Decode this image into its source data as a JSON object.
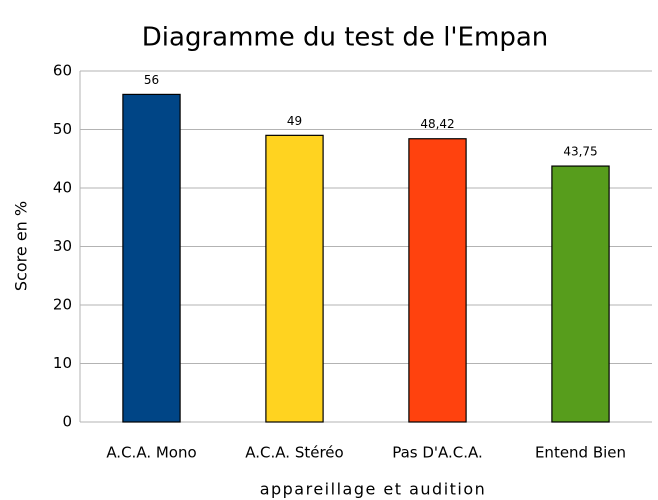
{
  "chart_data": {
    "type": "bar",
    "title": "Diagramme du test de l'Empan",
    "x_label": "appareillage et audition",
    "y_label": "Score en %",
    "categories": [
      "A.C.A. Mono",
      "A.C.A. Stéréo",
      "Pas D'A.C.A.",
      "Entend Bien"
    ],
    "values": [
      56,
      49,
      48.42,
      43.75
    ],
    "value_labels": [
      "56",
      "49",
      "48,42",
      "43,75"
    ],
    "colors": [
      "#004586",
      "#ffd320",
      "#ff420e",
      "#579d1c"
    ],
    "ylim": [
      0,
      60
    ],
    "yticks": [
      0,
      10,
      20,
      30,
      40,
      50,
      60
    ],
    "grid": true
  }
}
